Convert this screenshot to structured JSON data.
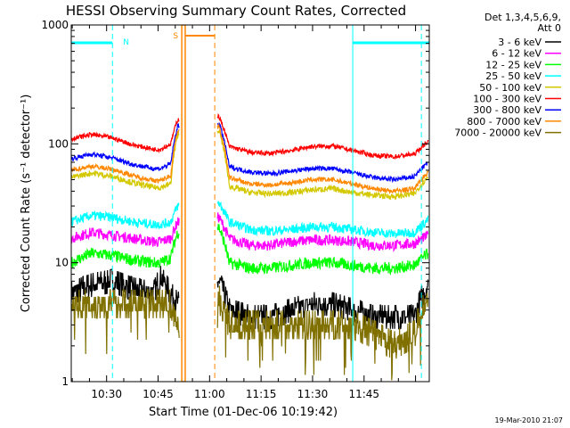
{
  "chart_data": {
    "type": "line",
    "title": "HESSI Observing Summary Count Rates, Corrected",
    "xlabel": "Start Time (01-Dec-06 10:19:42)",
    "ylabel": "Corrected Count Rate (s⁻¹ detector⁻¹)",
    "y_scale": "log",
    "ylim": [
      1,
      1000
    ],
    "xlim": [
      "10:19:42",
      "12:04:00"
    ],
    "x_ticks": [
      "10:30",
      "10:45",
      "11:00",
      "11:15",
      "11:30",
      "11:45"
    ],
    "y_ticks": [
      "1",
      "10",
      "100",
      "1000"
    ],
    "legend": {
      "position": "right",
      "header": [
        "Det 1,3,4,5,6,9,",
        "Att 0"
      ],
      "entries": [
        {
          "label": "3 - 6 keV",
          "color": "#000000"
        },
        {
          "label": "6 - 12 keV",
          "color": "#ff00ff"
        },
        {
          "label": "12 - 25 keV",
          "color": "#00ff00"
        },
        {
          "label": "25 - 50 keV",
          "color": "#00ffff"
        },
        {
          "label": "50 - 100 keV",
          "color": "#d4c800"
        },
        {
          "label": "100 - 300 keV",
          "color": "#ff0000"
        },
        {
          "label": "300 - 800 keV",
          "color": "#0000ff"
        },
        {
          "label": "800 - 7000 keV",
          "color": "#ff8800"
        },
        {
          "label": "7000 - 20000 keV",
          "color": "#807000"
        }
      ]
    },
    "x_minutes": [
      0,
      6,
      12,
      18,
      24,
      26,
      29,
      31,
      43,
      46,
      52,
      58,
      64,
      70,
      76,
      82,
      88,
      94,
      100,
      104
    ],
    "gap_minutes": [
      31,
      43
    ],
    "series": [
      {
        "name": "3 - 6 keV",
        "color": "#000000",
        "values": [
          5.5,
          6.5,
          7,
          6,
          5.5,
          7.5,
          5.5,
          4.5,
          7,
          4,
          3.5,
          3.5,
          4,
          4.5,
          4.5,
          4,
          3.5,
          3.5,
          3.5,
          6.5
        ]
      },
      {
        "name": "6 - 12 keV",
        "color": "#ff00ff",
        "values": [
          16,
          18,
          17,
          16,
          15,
          15,
          16,
          22,
          24,
          16,
          14,
          14,
          15,
          15.5,
          15.5,
          15,
          14,
          14,
          14.5,
          17
        ]
      },
      {
        "name": "12 - 25 keV",
        "color": "#00ff00",
        "values": [
          10,
          12,
          11.5,
          10.5,
          10,
          10,
          11,
          18,
          20,
          10,
          9,
          9,
          9.5,
          10,
          10,
          9.5,
          9,
          9,
          9.5,
          12
        ]
      },
      {
        "name": "25 - 50 keV",
        "color": "#00ffff",
        "values": [
          22,
          25,
          24,
          22,
          21,
          21,
          22,
          30,
          32,
          22,
          19,
          18.5,
          19,
          20,
          20,
          19,
          18,
          17.5,
          18,
          23
        ]
      },
      {
        "name": "50 - 100 keV",
        "color": "#d4c800",
        "values": [
          52,
          57,
          53,
          47,
          43,
          43,
          46,
          120,
          130,
          44,
          39,
          38,
          39,
          41,
          42,
          39,
          37,
          36,
          38,
          53
        ]
      },
      {
        "name": "100 - 300 keV",
        "color": "#ff0000",
        "values": [
          110,
          120,
          112,
          98,
          90,
          90,
          100,
          160,
          170,
          95,
          85,
          83,
          88,
          95,
          96,
          88,
          80,
          78,
          82,
          105
        ]
      },
      {
        "name": "300 - 800 keV",
        "color": "#0000ff",
        "values": [
          75,
          82,
          76,
          67,
          62,
          62,
          68,
          140,
          150,
          64,
          58,
          56,
          59,
          62,
          62,
          57,
          52,
          50,
          53,
          70
        ]
      },
      {
        "name": "800 - 7000 keV",
        "color": "#ff8800",
        "values": [
          60,
          65,
          61,
          54,
          49,
          49,
          54,
          130,
          140,
          52,
          46,
          45,
          47,
          50,
          50,
          46,
          42,
          40,
          42,
          58
        ]
      },
      {
        "name": "7000 - 20000 keV",
        "color": "#807000",
        "values": [
          4.5,
          4.5,
          4.5,
          4.5,
          4.5,
          4.5,
          4.5,
          3,
          5,
          3,
          3,
          3,
          3,
          3,
          3,
          3,
          2.5,
          2,
          2.5,
          5
        ]
      }
    ],
    "annotations": [
      {
        "label": "N",
        "color": "#00ffff",
        "text_minute": 16
      },
      {
        "label": "S",
        "color": "#ff8800",
        "text_minute": 33
      }
    ],
    "timestamp": "19-Mar-2010 21:07"
  }
}
